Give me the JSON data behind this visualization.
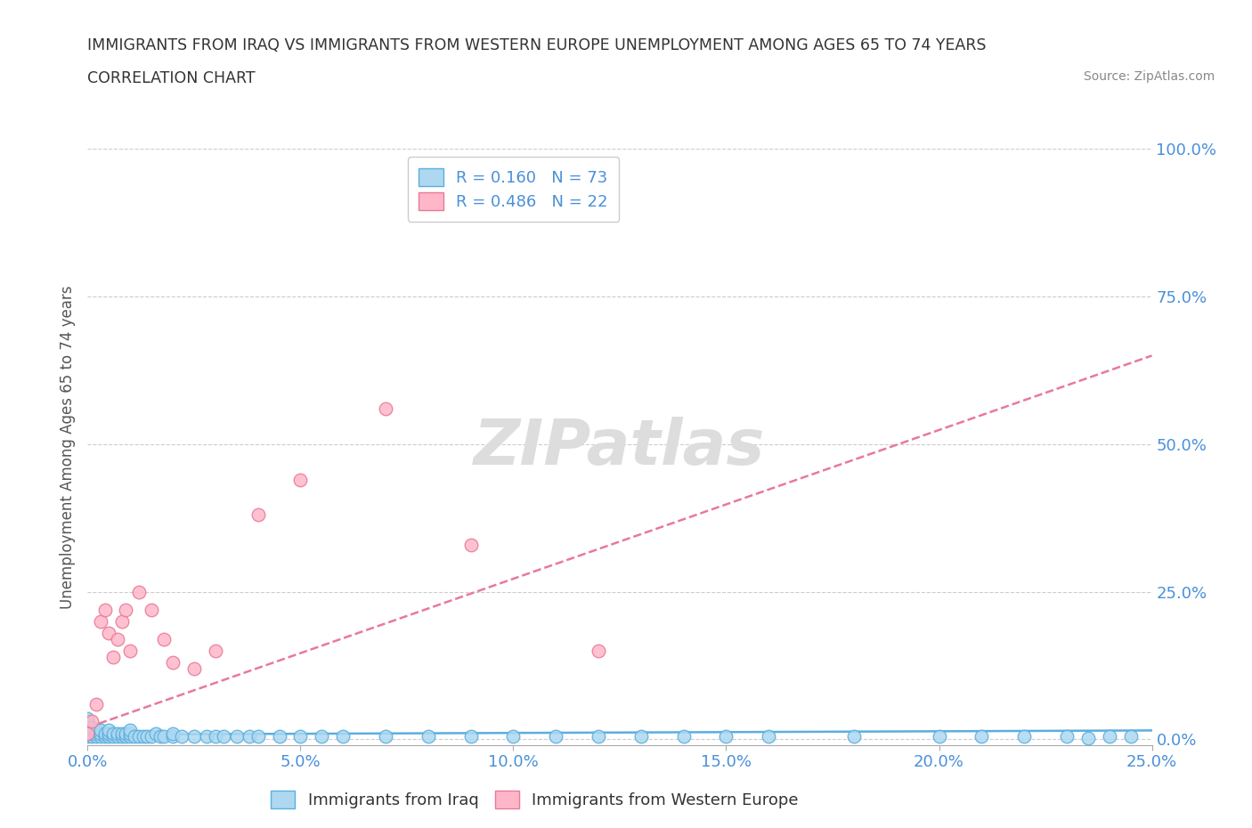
{
  "title": "IMMIGRANTS FROM IRAQ VS IMMIGRANTS FROM WESTERN EUROPE UNEMPLOYMENT AMONG AGES 65 TO 74 YEARS",
  "subtitle": "CORRELATION CHART",
  "source": "Source: ZipAtlas.com",
  "ylabel": "Unemployment Among Ages 65 to 74 years",
  "xlim": [
    0.0,
    0.25
  ],
  "ylim": [
    -0.01,
    1.0
  ],
  "yticks": [
    0.0,
    0.25,
    0.5,
    0.75,
    1.0
  ],
  "ytick_labels": [
    "0.0%",
    "25.0%",
    "50.0%",
    "75.0%",
    "100.0%"
  ],
  "xticks": [
    0.0,
    0.05,
    0.1,
    0.15,
    0.2,
    0.25
  ],
  "xtick_labels": [
    "0.0%",
    "5.0%",
    "10.0%",
    "15.0%",
    "20.0%",
    "25.0%"
  ],
  "iraq_color": "#add8f0",
  "iraq_edge_color": "#5baee0",
  "we_color": "#ffb6c8",
  "we_edge_color": "#e8799a",
  "iraq_R": 0.16,
  "iraq_N": 73,
  "we_R": 0.486,
  "we_N": 22,
  "legend_label_iraq": "Immigrants from Iraq",
  "legend_label_we": "Immigrants from Western Europe",
  "iraq_trend_color": "#5baee0",
  "we_trend_color": "#e8799a",
  "iraq_x": [
    0.0,
    0.0,
    0.0,
    0.0,
    0.0,
    0.0,
    0.0,
    0.001,
    0.001,
    0.001,
    0.001,
    0.002,
    0.002,
    0.002,
    0.003,
    0.003,
    0.003,
    0.004,
    0.004,
    0.005,
    0.005,
    0.005,
    0.006,
    0.006,
    0.007,
    0.007,
    0.008,
    0.008,
    0.009,
    0.009,
    0.01,
    0.01,
    0.01,
    0.011,
    0.012,
    0.013,
    0.014,
    0.015,
    0.016,
    0.017,
    0.018,
    0.02,
    0.02,
    0.022,
    0.025,
    0.028,
    0.03,
    0.032,
    0.035,
    0.038,
    0.04,
    0.045,
    0.05,
    0.055,
    0.06,
    0.07,
    0.08,
    0.09,
    0.1,
    0.11,
    0.12,
    0.13,
    0.14,
    0.15,
    0.16,
    0.18,
    0.2,
    0.21,
    0.22,
    0.23,
    0.235,
    0.24,
    0.245
  ],
  "iraq_y": [
    0.005,
    0.01,
    0.015,
    0.02,
    0.025,
    0.03,
    0.035,
    0.005,
    0.01,
    0.015,
    0.02,
    0.005,
    0.01,
    0.015,
    0.005,
    0.01,
    0.015,
    0.005,
    0.01,
    0.005,
    0.01,
    0.015,
    0.005,
    0.01,
    0.005,
    0.01,
    0.005,
    0.01,
    0.005,
    0.01,
    0.005,
    0.01,
    0.015,
    0.005,
    0.005,
    0.005,
    0.005,
    0.005,
    0.01,
    0.005,
    0.005,
    0.005,
    0.01,
    0.005,
    0.005,
    0.005,
    0.005,
    0.005,
    0.005,
    0.005,
    0.005,
    0.005,
    0.005,
    0.005,
    0.005,
    0.005,
    0.005,
    0.005,
    0.005,
    0.005,
    0.005,
    0.005,
    0.005,
    0.005,
    0.005,
    0.005,
    0.005,
    0.005,
    0.005,
    0.005,
    0.002,
    0.005,
    0.005
  ],
  "we_x": [
    0.0,
    0.001,
    0.002,
    0.003,
    0.004,
    0.005,
    0.006,
    0.007,
    0.008,
    0.009,
    0.01,
    0.012,
    0.015,
    0.018,
    0.02,
    0.025,
    0.03,
    0.04,
    0.05,
    0.07,
    0.09,
    0.12
  ],
  "we_y": [
    0.01,
    0.03,
    0.06,
    0.2,
    0.22,
    0.18,
    0.14,
    0.17,
    0.2,
    0.22,
    0.15,
    0.25,
    0.22,
    0.17,
    0.13,
    0.12,
    0.15,
    0.38,
    0.44,
    0.56,
    0.33,
    0.15
  ],
  "iraq_trend_x0": 0.0,
  "iraq_trend_x1": 0.25,
  "iraq_trend_y0": 0.008,
  "iraq_trend_y1": 0.015,
  "we_trend_x0": 0.0,
  "we_trend_x1": 0.25,
  "we_trend_y0": 0.02,
  "we_trend_y1": 0.65
}
